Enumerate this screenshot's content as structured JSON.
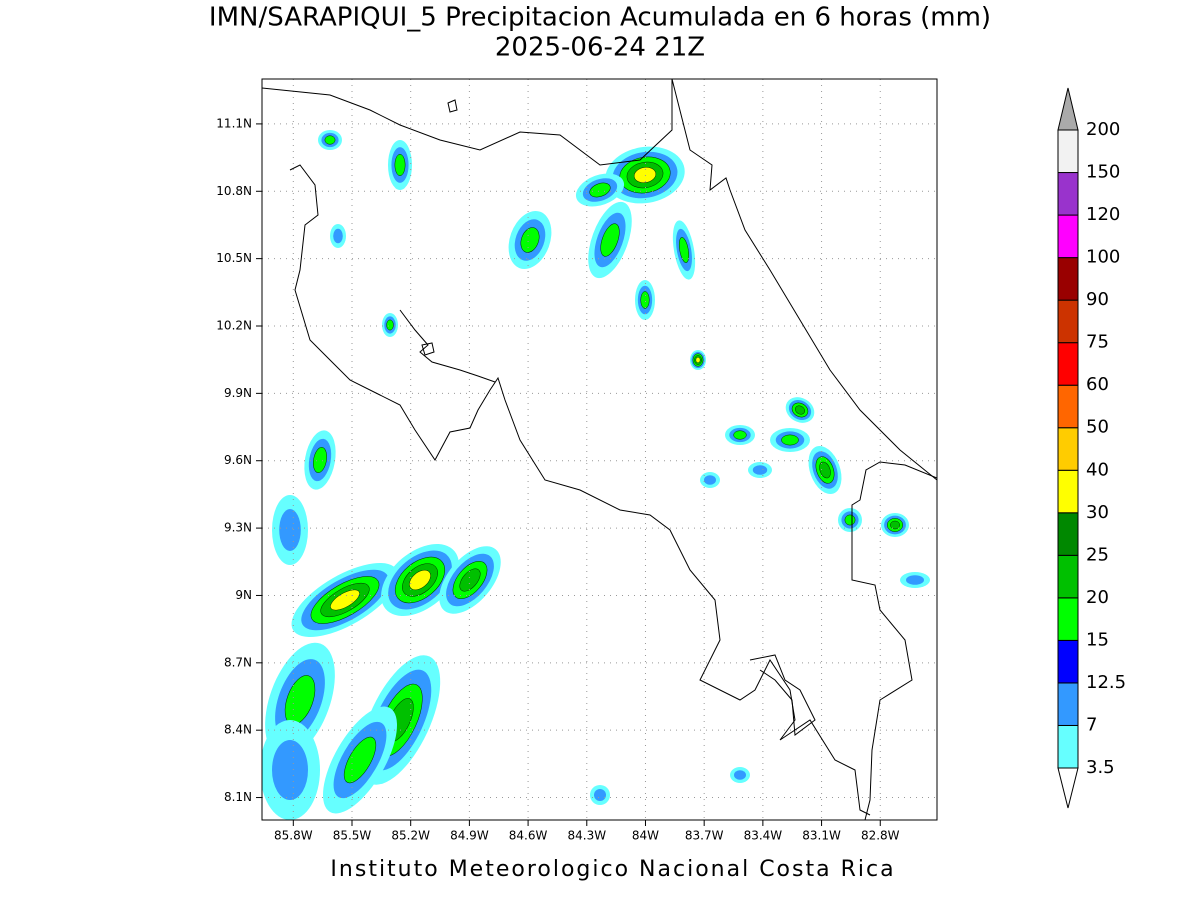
{
  "chart_data": {
    "type": "contour-map",
    "title": "IMN/SARAPIQUI_5 Precipitacion Acumulada en 6 horas (mm)",
    "subtitle": "2025-06-24 21Z",
    "footer": "Instituto Meteorologico Nacional Costa Rica",
    "xlim": [
      -85.96,
      -82.51
    ],
    "ylim": [
      8.0,
      11.3
    ],
    "xticks": [
      {
        "value": -85.8,
        "label": "85.8W"
      },
      {
        "value": -85.5,
        "label": "85.5W"
      },
      {
        "value": -85.2,
        "label": "85.2W"
      },
      {
        "value": -84.9,
        "label": "84.9W"
      },
      {
        "value": -84.6,
        "label": "84.6W"
      },
      {
        "value": -84.3,
        "label": "84.3W"
      },
      {
        "value": -84,
        "label": "84W"
      },
      {
        "value": -83.7,
        "label": "83.7W"
      },
      {
        "value": -83.4,
        "label": "83.4W"
      },
      {
        "value": -83.1,
        "label": "83.1W"
      },
      {
        "value": -82.8,
        "label": "82.8W"
      }
    ],
    "yticks": [
      {
        "value": 8.1,
        "label": "8.1N"
      },
      {
        "value": 8.4,
        "label": "8.4N"
      },
      {
        "value": 8.7,
        "label": "8.7N"
      },
      {
        "value": 9,
        "label": "9N"
      },
      {
        "value": 9.3,
        "label": "9.3N"
      },
      {
        "value": 9.6,
        "label": "9.6N"
      },
      {
        "value": 9.9,
        "label": "9.9N"
      },
      {
        "value": 10.2,
        "label": "10.2N"
      },
      {
        "value": 10.5,
        "label": "10.5N"
      },
      {
        "value": 10.8,
        "label": "10.8N"
      },
      {
        "value": 11.1,
        "label": "11.1N"
      }
    ],
    "grid": true,
    "levels": [
      3.5,
      7,
      12.5,
      15,
      20,
      25,
      30,
      40,
      50,
      60,
      75,
      90,
      100,
      120,
      150,
      200
    ],
    "colors": [
      "#66ffff",
      "#3399ff",
      "#0000ff",
      "#00ff00",
      "#00c000",
      "#008800",
      "#ffff00",
      "#ffcc00",
      "#ff6600",
      "#ff0000",
      "#cc3300",
      "#990000",
      "#ff00ff",
      "#9933cc",
      "#f2f2f2"
    ],
    "under_color": "#ffffff",
    "over_color": "#aaaaaa"
  }
}
